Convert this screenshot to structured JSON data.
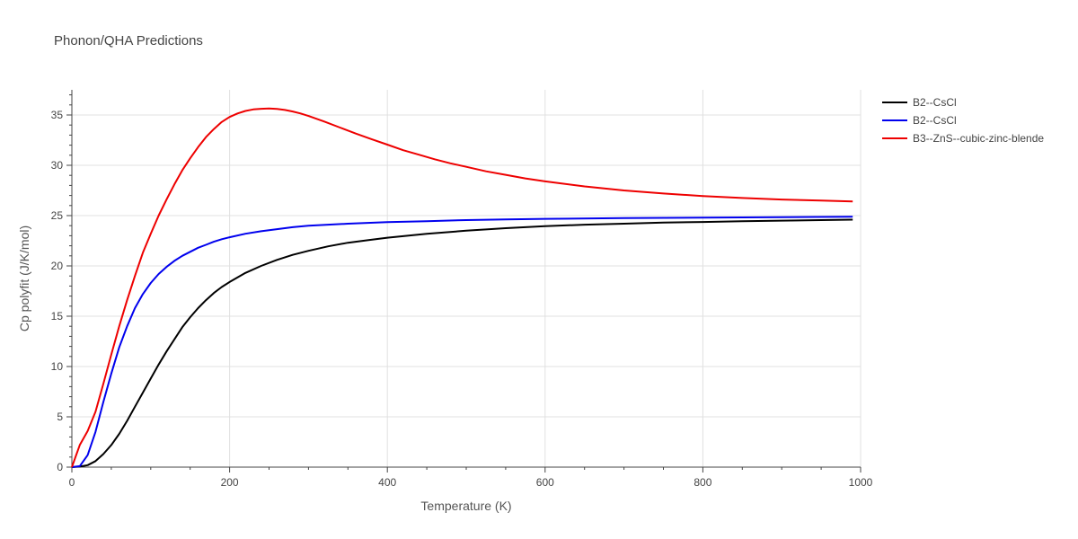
{
  "chart_data": {
    "type": "line",
    "title": "Phonon/QHA Predictions",
    "xlabel": "Temperature (K)",
    "ylabel": "Cp polyfit (J/K/mol)",
    "xlim": [
      0,
      1000
    ],
    "ylim": [
      0,
      37.5
    ],
    "xticks": [
      0,
      200,
      400,
      600,
      800,
      1000
    ],
    "yticks": [
      0,
      5,
      10,
      15,
      20,
      25,
      30,
      35
    ],
    "grid": true,
    "legend_position": "top-right",
    "series": [
      {
        "name": "B2--CsCl",
        "color": "#000000",
        "x": [
          0,
          10,
          20,
          30,
          40,
          50,
          60,
          70,
          80,
          90,
          100,
          110,
          120,
          130,
          140,
          150,
          160,
          170,
          180,
          190,
          200,
          220,
          240,
          260,
          280,
          300,
          325,
          350,
          375,
          400,
          450,
          500,
          550,
          600,
          650,
          700,
          750,
          800,
          850,
          900,
          950,
          990
        ],
        "y": [
          0,
          0.05,
          0.2,
          0.6,
          1.3,
          2.2,
          3.3,
          4.6,
          6.0,
          7.4,
          8.8,
          10.2,
          11.5,
          12.7,
          13.9,
          14.9,
          15.8,
          16.6,
          17.3,
          17.9,
          18.4,
          19.3,
          20.0,
          20.6,
          21.1,
          21.5,
          21.95,
          22.3,
          22.55,
          22.8,
          23.2,
          23.5,
          23.75,
          23.95,
          24.1,
          24.2,
          24.3,
          24.37,
          24.44,
          24.5,
          24.55,
          24.6
        ]
      },
      {
        "name": "B2--CsCl",
        "color": "#0000ee",
        "x": [
          0,
          10,
          20,
          30,
          40,
          50,
          60,
          70,
          80,
          90,
          100,
          110,
          120,
          130,
          140,
          150,
          160,
          170,
          180,
          190,
          200,
          220,
          240,
          260,
          280,
          300,
          350,
          400,
          450,
          500,
          550,
          600,
          700,
          800,
          900,
          990
        ],
        "y": [
          0,
          0.1,
          1.2,
          3.5,
          6.5,
          9.3,
          11.9,
          14.0,
          15.8,
          17.2,
          18.3,
          19.2,
          19.9,
          20.5,
          21.0,
          21.4,
          21.8,
          22.1,
          22.4,
          22.65,
          22.85,
          23.2,
          23.45,
          23.65,
          23.85,
          24.0,
          24.2,
          24.35,
          24.45,
          24.55,
          24.62,
          24.68,
          24.75,
          24.8,
          24.85,
          24.88
        ]
      },
      {
        "name": "B3--ZnS--cubic-zinc-blende",
        "color": "#ee0000",
        "x": [
          0,
          10,
          20,
          30,
          40,
          50,
          60,
          70,
          80,
          90,
          100,
          110,
          120,
          130,
          140,
          150,
          160,
          170,
          180,
          190,
          200,
          210,
          220,
          230,
          240,
          250,
          260,
          270,
          280,
          290,
          300,
          320,
          340,
          360,
          380,
          400,
          420,
          440,
          460,
          480,
          500,
          525,
          550,
          575,
          600,
          650,
          700,
          750,
          800,
          850,
          900,
          950,
          990
        ],
        "y": [
          0,
          2.2,
          3.6,
          5.5,
          8.3,
          11.2,
          14.0,
          16.6,
          19.0,
          21.3,
          23.2,
          25.0,
          26.6,
          28.1,
          29.5,
          30.7,
          31.8,
          32.8,
          33.6,
          34.3,
          34.8,
          35.15,
          35.4,
          35.55,
          35.62,
          35.65,
          35.6,
          35.5,
          35.35,
          35.15,
          34.9,
          34.35,
          33.75,
          33.15,
          32.6,
          32.05,
          31.5,
          31.05,
          30.6,
          30.2,
          29.85,
          29.4,
          29.05,
          28.7,
          28.4,
          27.9,
          27.5,
          27.2,
          26.95,
          26.75,
          26.6,
          26.5,
          26.4
        ]
      }
    ]
  }
}
